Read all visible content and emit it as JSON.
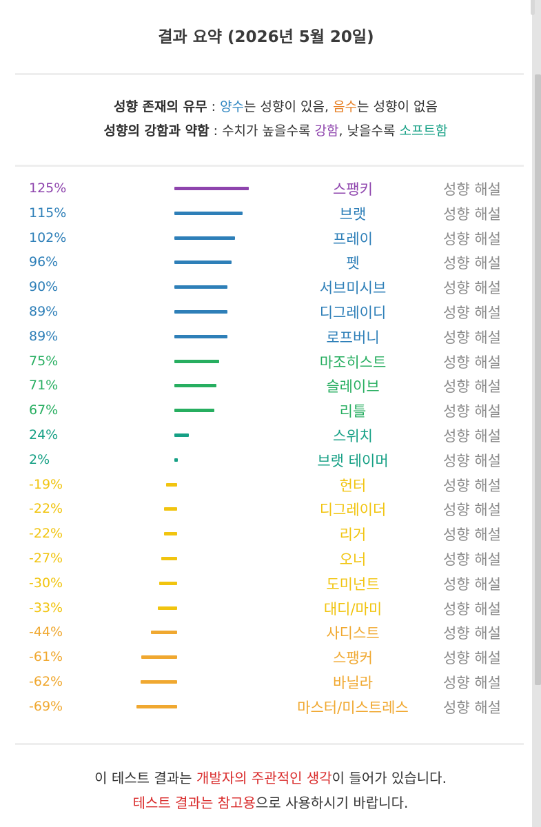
{
  "header": {
    "title": "결과 요약 (2026년 5월 20일)"
  },
  "legend": {
    "line1": {
      "label": "성향 존재의 유무",
      "sep": " : ",
      "pos_word": "양수",
      "pos_text": "는 성향이 있음, ",
      "neg_word": "음수",
      "neg_text": "는 성향이 없음"
    },
    "line2": {
      "label": "성향의 강함과 약함",
      "sep": " : ",
      "text_a": "수치가 높을수록 ",
      "strong_word": "강함",
      "text_b": ", 낮을수록 ",
      "soft_word": "소프트함"
    }
  },
  "colors": {
    "pos_word": "#2e86c1",
    "neg_word": "#e67e22",
    "strong_word": "#8e44ad",
    "soft_word": "#16a085",
    "footer_highlight": "#d92b2b"
  },
  "explain_label": "성향 해설",
  "results": [
    {
      "pct": "125%",
      "value": 125,
      "name": "스팽키",
      "color": "#8e44ad"
    },
    {
      "pct": "115%",
      "value": 115,
      "name": "브랫",
      "color": "#2e7fb8"
    },
    {
      "pct": "102%",
      "value": 102,
      "name": "프레이",
      "color": "#2e7fb8"
    },
    {
      "pct": "96%",
      "value": 96,
      "name": "펫",
      "color": "#2e7fb8"
    },
    {
      "pct": "90%",
      "value": 90,
      "name": "서브미시브",
      "color": "#2e7fb8"
    },
    {
      "pct": "89%",
      "value": 89,
      "name": "디그레이디",
      "color": "#2e7fb8"
    },
    {
      "pct": "89%",
      "value": 89,
      "name": "로프버니",
      "color": "#2e7fb8"
    },
    {
      "pct": "75%",
      "value": 75,
      "name": "마조히스트",
      "color": "#27ae60"
    },
    {
      "pct": "71%",
      "value": 71,
      "name": "슬레이브",
      "color": "#27ae60"
    },
    {
      "pct": "67%",
      "value": 67,
      "name": "리틀",
      "color": "#27ae60"
    },
    {
      "pct": "24%",
      "value": 24,
      "name": "스위치",
      "color": "#16a085"
    },
    {
      "pct": "2%",
      "value": 2,
      "name": "브랫 테이머",
      "color": "#16a085"
    },
    {
      "pct": "-19%",
      "value": -19,
      "name": "헌터",
      "color": "#f1c40f"
    },
    {
      "pct": "-22%",
      "value": -22,
      "name": "디그레이더",
      "color": "#f1c40f"
    },
    {
      "pct": "-22%",
      "value": -22,
      "name": "리거",
      "color": "#f1c40f"
    },
    {
      "pct": "-27%",
      "value": -27,
      "name": "오너",
      "color": "#f1c40f"
    },
    {
      "pct": "-30%",
      "value": -30,
      "name": "도미넌트",
      "color": "#f1c40f"
    },
    {
      "pct": "-33%",
      "value": -33,
      "name": "대디/마미",
      "color": "#f1c40f"
    },
    {
      "pct": "-44%",
      "value": -44,
      "name": "사디스트",
      "color": "#f0a830"
    },
    {
      "pct": "-61%",
      "value": -61,
      "name": "스팽커",
      "color": "#f0a830"
    },
    {
      "pct": "-62%",
      "value": -62,
      "name": "바닐라",
      "color": "#f0a830"
    },
    {
      "pct": "-69%",
      "value": -69,
      "name": "마스터/미스트레스",
      "color": "#f0a830"
    }
  ],
  "footer": {
    "line1_a": "이 테스트 결과는 ",
    "line1_red": "개발자의 주관적인 생각",
    "line1_b": "이 들어가 있습니다.",
    "line2_red": "테스트 결과는 참고용",
    "line2_b": "으로 사용하시기 바랍니다."
  }
}
